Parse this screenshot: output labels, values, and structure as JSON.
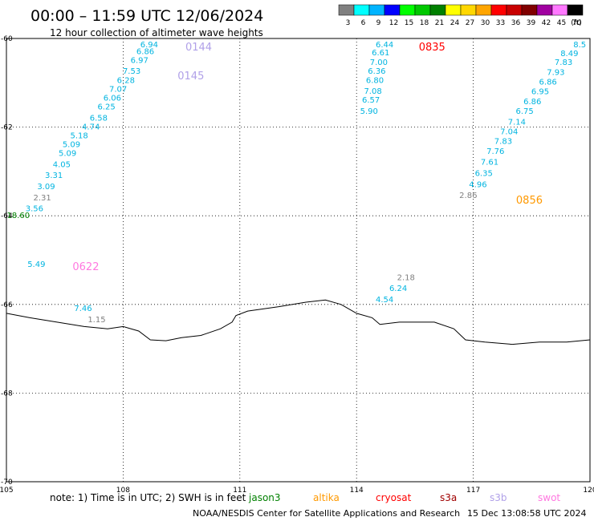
{
  "header": {
    "title": "00:00 – 11:59 UTC 12/06/2024",
    "subtitle": "12 hour collection of altimeter wave heights"
  },
  "legend": {
    "colors": [
      "#808080",
      "#00ffff",
      "#00b4ff",
      "#0000ff",
      "#00ff00",
      "#00c800",
      "#008000",
      "#ffff00",
      "#ffd700",
      "#ffa500",
      "#ff0000",
      "#c80000",
      "#800000",
      "#a000a0",
      "#ff78ff",
      "#000000"
    ],
    "labels": [
      "3",
      "6",
      "9",
      "12",
      "15",
      "18",
      "21",
      "24",
      "27",
      "30",
      "33",
      "36",
      "39",
      "42",
      "45",
      "70"
    ],
    "unit": "(ft)"
  },
  "axes": {
    "lat_labels": [
      "-60",
      "-62",
      "-64",
      "-66",
      "-68",
      "-70"
    ],
    "lon_labels": [
      "105",
      "108",
      "111",
      "114",
      "117",
      "120"
    ]
  },
  "map_data": {
    "lat_range": [
      -70,
      -60
    ],
    "lon_range": [
      105,
      120
    ],
    "coastline": [
      [
        105,
        -66.2
      ],
      [
        105.6,
        -66.3
      ],
      [
        106.3,
        -66.4
      ],
      [
        107,
        -66.5
      ],
      [
        107.6,
        -66.55
      ],
      [
        108,
        -66.5
      ],
      [
        108.4,
        -66.6
      ],
      [
        108.7,
        -66.8
      ],
      [
        109.1,
        -66.82
      ],
      [
        109.5,
        -66.75
      ],
      [
        110,
        -66.7
      ],
      [
        110.5,
        -66.55
      ],
      [
        110.8,
        -66.4
      ],
      [
        110.9,
        -66.25
      ],
      [
        111.2,
        -66.15
      ],
      [
        112,
        -66.05
      ],
      [
        112.7,
        -65.95
      ],
      [
        113.2,
        -65.9
      ],
      [
        113.6,
        -66.0
      ],
      [
        114.0,
        -66.2
      ],
      [
        114.4,
        -66.3
      ],
      [
        114.6,
        -66.45
      ],
      [
        115.1,
        -66.4
      ],
      [
        116,
        -66.4
      ],
      [
        116.5,
        -66.55
      ],
      [
        116.8,
        -66.8
      ],
      [
        117.3,
        -66.85
      ],
      [
        118,
        -66.9
      ],
      [
        118.7,
        -66.85
      ],
      [
        119.4,
        -66.85
      ],
      [
        120,
        -66.8
      ]
    ],
    "passes": [
      {
        "name": "0144",
        "color": "#b0a0e8",
        "label_pos": [
          109.6,
          -60.2
        ],
        "points": [
          {
            "v": "6.94",
            "c": "#00b4e0",
            "lon": 108.9,
            "lat": -60.2
          },
          {
            "v": "6.86",
            "c": "#00b4e0",
            "lon": 108.8,
            "lat": -60.35
          },
          {
            "v": "6.97",
            "c": "#00b4e0",
            "lon": 108.65,
            "lat": -60.55
          },
          {
            "v": "7.53",
            "c": "#00b4e0",
            "lon": 108.45,
            "lat": -60.8
          },
          {
            "v": "6.28",
            "c": "#00b4e0",
            "lon": 108.3,
            "lat": -61.0
          },
          {
            "v": "7.07",
            "c": "#00b4e0",
            "lon": 108.1,
            "lat": -61.2
          },
          {
            "v": "6.06",
            "c": "#00b4e0",
            "lon": 107.95,
            "lat": -61.4
          },
          {
            "v": "6.25",
            "c": "#00b4e0",
            "lon": 107.8,
            "lat": -61.6
          },
          {
            "v": "6.58",
            "c": "#00b4e0",
            "lon": 107.6,
            "lat": -61.85
          },
          {
            "v": "4.74",
            "c": "#00b4e0",
            "lon": 107.4,
            "lat": -62.05
          },
          {
            "v": "5.18",
            "c": "#00b4e0",
            "lon": 107.1,
            "lat": -62.25
          },
          {
            "v": "5.09",
            "c": "#00b4e0",
            "lon": 106.9,
            "lat": -62.45
          },
          {
            "v": "5.09",
            "c": "#00b4e0",
            "lon": 106.8,
            "lat": -62.65
          },
          {
            "v": "4.05",
            "c": "#00b4e0",
            "lon": 106.65,
            "lat": -62.9
          },
          {
            "v": "3.31",
            "c": "#00b4e0",
            "lon": 106.45,
            "lat": -63.15
          },
          {
            "v": "3.09",
            "c": "#00b4e0",
            "lon": 106.25,
            "lat": -63.4
          },
          {
            "v": "2.31",
            "c": "#808080",
            "lon": 106.15,
            "lat": -63.65
          },
          {
            "v": "3.56",
            "c": "#00b4e0",
            "lon": 105.95,
            "lat": -63.9
          },
          {
            "v": "18.60",
            "c": "#008000",
            "lon": 105.6,
            "lat": -64.05
          }
        ]
      },
      {
        "name": "0145",
        "color": "#b0a0e8",
        "label_pos": [
          109.4,
          -60.85
        ],
        "points": []
      },
      {
        "name": "0622",
        "color": "#ff78e0",
        "label_pos": [
          106.7,
          -65.15
        ],
        "points": [
          {
            "v": "5.49",
            "c": "#00b4e0",
            "lon": 106.0,
            "lat": -65.15
          },
          {
            "v": "7.46",
            "c": "#00b4e0",
            "lon": 107.2,
            "lat": -66.15
          },
          {
            "v": "1.15",
            "c": "#808080",
            "lon": 107.55,
            "lat": -66.4
          }
        ]
      },
      {
        "name": "0835",
        "color": "#ff0000",
        "label_pos": [
          115.6,
          -60.2
        ],
        "points": [
          {
            "v": "6.44",
            "c": "#00b4e0",
            "lon": 114.95,
            "lat": -60.2
          },
          {
            "v": "6.61",
            "c": "#00b4e0",
            "lon": 114.85,
            "lat": -60.38
          },
          {
            "v": "7.00",
            "c": "#00b4e0",
            "lon": 114.8,
            "lat": -60.6
          },
          {
            "v": "6.36",
            "c": "#00b4e0",
            "lon": 114.75,
            "lat": -60.8
          },
          {
            "v": "6.80",
            "c": "#00b4e0",
            "lon": 114.7,
            "lat": -61.0
          },
          {
            "v": "7.08",
            "c": "#00b4e0",
            "lon": 114.65,
            "lat": -61.25
          },
          {
            "v": "6.57",
            "c": "#00b4e0",
            "lon": 114.6,
            "lat": -61.45
          },
          {
            "v": "5.90",
            "c": "#00b4e0",
            "lon": 114.55,
            "lat": -61.7
          }
        ]
      },
      {
        "name": "0856",
        "color": "#ff9900",
        "label_pos": [
          118.1,
          -63.65
        ],
        "points": [
          {
            "v": "8.5",
            "c": "#00b4e0",
            "lon": 119.9,
            "lat": -60.2
          },
          {
            "v": "8.49",
            "c": "#00b4e0",
            "lon": 119.7,
            "lat": -60.4
          },
          {
            "v": "7.83",
            "c": "#00b4e0",
            "lon": 119.55,
            "lat": -60.6
          },
          {
            "v": "7.93",
            "c": "#00b4e0",
            "lon": 119.35,
            "lat": -60.82
          },
          {
            "v": "6.86",
            "c": "#00b4e0",
            "lon": 119.15,
            "lat": -61.04
          },
          {
            "v": "6.95",
            "c": "#00b4e0",
            "lon": 118.95,
            "lat": -61.26
          },
          {
            "v": "6.86",
            "c": "#00b4e0",
            "lon": 118.75,
            "lat": -61.48
          },
          {
            "v": "6.75",
            "c": "#00b4e0",
            "lon": 118.55,
            "lat": -61.7
          },
          {
            "v": "7.14",
            "c": "#00b4e0",
            "lon": 118.35,
            "lat": -61.94
          },
          {
            "v": "7.04",
            "c": "#00b4e0",
            "lon": 118.15,
            "lat": -62.16
          },
          {
            "v": "7.83",
            "c": "#00b4e0",
            "lon": 118.0,
            "lat": -62.38
          },
          {
            "v": "7.76",
            "c": "#00b4e0",
            "lon": 117.8,
            "lat": -62.6
          },
          {
            "v": "7.61",
            "c": "#00b4e0",
            "lon": 117.65,
            "lat": -62.85
          },
          {
            "v": "6.35",
            "c": "#00b4e0",
            "lon": 117.5,
            "lat": -63.1
          },
          {
            "v": "4.96",
            "c": "#00b4e0",
            "lon": 117.35,
            "lat": -63.35
          },
          {
            "v": "2.86",
            "c": "#808080",
            "lon": 117.1,
            "lat": -63.6
          }
        ]
      },
      {
        "name": "",
        "color": "#000",
        "label_pos": null,
        "points": [
          {
            "v": "2.18",
            "c": "#808080",
            "lon": 115.5,
            "lat": -65.45
          },
          {
            "v": "6.24",
            "c": "#00b4e0",
            "lon": 115.3,
            "lat": -65.7
          },
          {
            "v": "4.54",
            "c": "#00b4e0",
            "lon": 114.95,
            "lat": -65.95
          }
        ]
      }
    ]
  },
  "footer": {
    "note": "note:  1) Time is in UTC; 2) SWH is in feet",
    "satellites": [
      {
        "name": "jason3",
        "color": "#008000"
      },
      {
        "name": "altika",
        "color": "#ff9900"
      },
      {
        "name": "cryosat",
        "color": "#ff0000"
      },
      {
        "name": "s3a",
        "color": "#a00000"
      },
      {
        "name": "s3b",
        "color": "#b0a0e8"
      },
      {
        "name": "swot",
        "color": "#ff78e0"
      }
    ],
    "credit": "NOAA/NESDIS Center for Satellite Applications and Research",
    "timestamp": "15 Dec 13:08:58 UTC 2024"
  }
}
